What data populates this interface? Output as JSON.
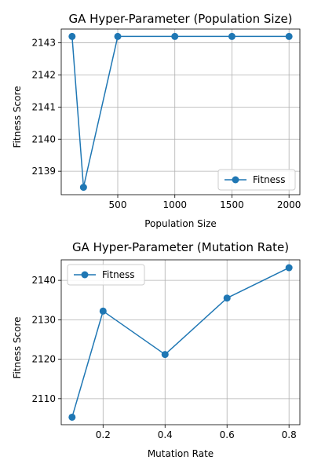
{
  "chart_data": [
    {
      "type": "line",
      "title": "GA Hyper-Parameter (Population Size)",
      "xlabel": "Population Size",
      "ylabel": "Fitness Score",
      "x": [
        100,
        200,
        500,
        1000,
        1500,
        2000
      ],
      "series": [
        {
          "name": "Fitness",
          "color": "#1f77b4",
          "values": [
            2143.2,
            2138.5,
            2143.2,
            2143.2,
            2143.2,
            2143.2
          ]
        }
      ],
      "xlim": [
        5,
        2095
      ],
      "ylim": [
        2138.27,
        2143.43
      ],
      "xticks": [
        500,
        1000,
        1500,
        2000
      ],
      "xtick_labels": [
        "500",
        "1000",
        "1500",
        "2000"
      ],
      "yticks": [
        2139,
        2140,
        2141,
        2142,
        2143
      ],
      "ytick_labels": [
        "2139",
        "2140",
        "2141",
        "2142",
        "2143"
      ],
      "grid": true,
      "legend_position": "lower-right"
    },
    {
      "type": "line",
      "title": "GA Hyper-Parameter (Mutation Rate)",
      "xlabel": "Mutation Rate",
      "ylabel": "Fitness Score",
      "x": [
        0.1,
        0.2,
        0.4,
        0.6,
        0.8
      ],
      "series": [
        {
          "name": "Fitness",
          "color": "#1f77b4",
          "values": [
            2105.3,
            2132.2,
            2121.2,
            2135.5,
            2143.2
          ]
        }
      ],
      "xlim": [
        0.065,
        0.835
      ],
      "ylim": [
        2103.4,
        2145.2
      ],
      "xticks": [
        0.2,
        0.4,
        0.6,
        0.8
      ],
      "xtick_labels": [
        "0.2",
        "0.4",
        "0.6",
        "0.8"
      ],
      "yticks": [
        2110,
        2120,
        2130,
        2140
      ],
      "ytick_labels": [
        "2110",
        "2120",
        "2130",
        "2140"
      ],
      "grid": true,
      "legend_position": "upper-left"
    }
  ]
}
